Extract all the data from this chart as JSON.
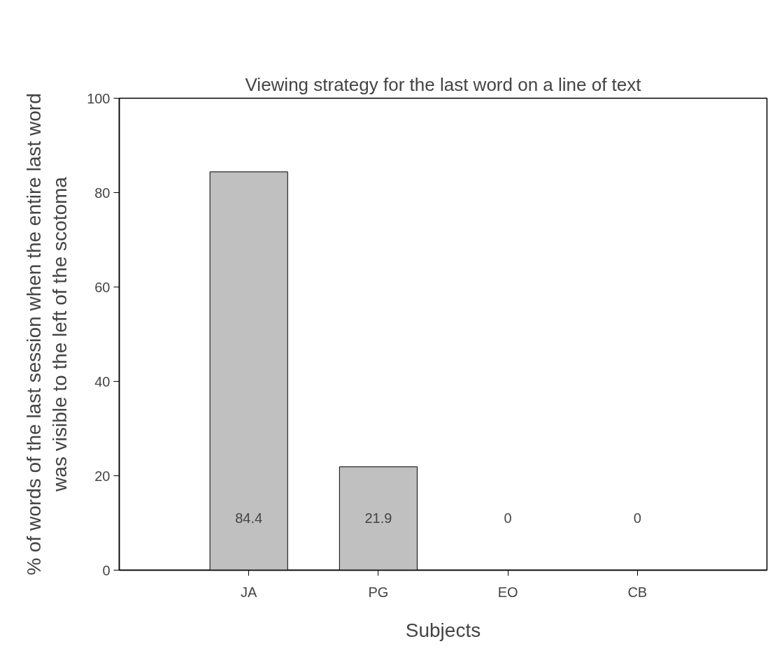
{
  "chart_data": {
    "type": "bar",
    "title": "Viewing strategy for the last word on a line of text",
    "xlabel": "Subjects",
    "ylabel": "% of words of the last session when the entire last word\nwas visible to the left of the scotoma",
    "categories": [
      "JA",
      "PG",
      "EO",
      "CB"
    ],
    "values": [
      84.4,
      21.9,
      0,
      0
    ],
    "color": "#c0c0c0",
    "ylim": [
      0,
      100
    ],
    "yticks": [
      0,
      20,
      40,
      60,
      80,
      100
    ],
    "data_labels": true,
    "grid": false
  }
}
